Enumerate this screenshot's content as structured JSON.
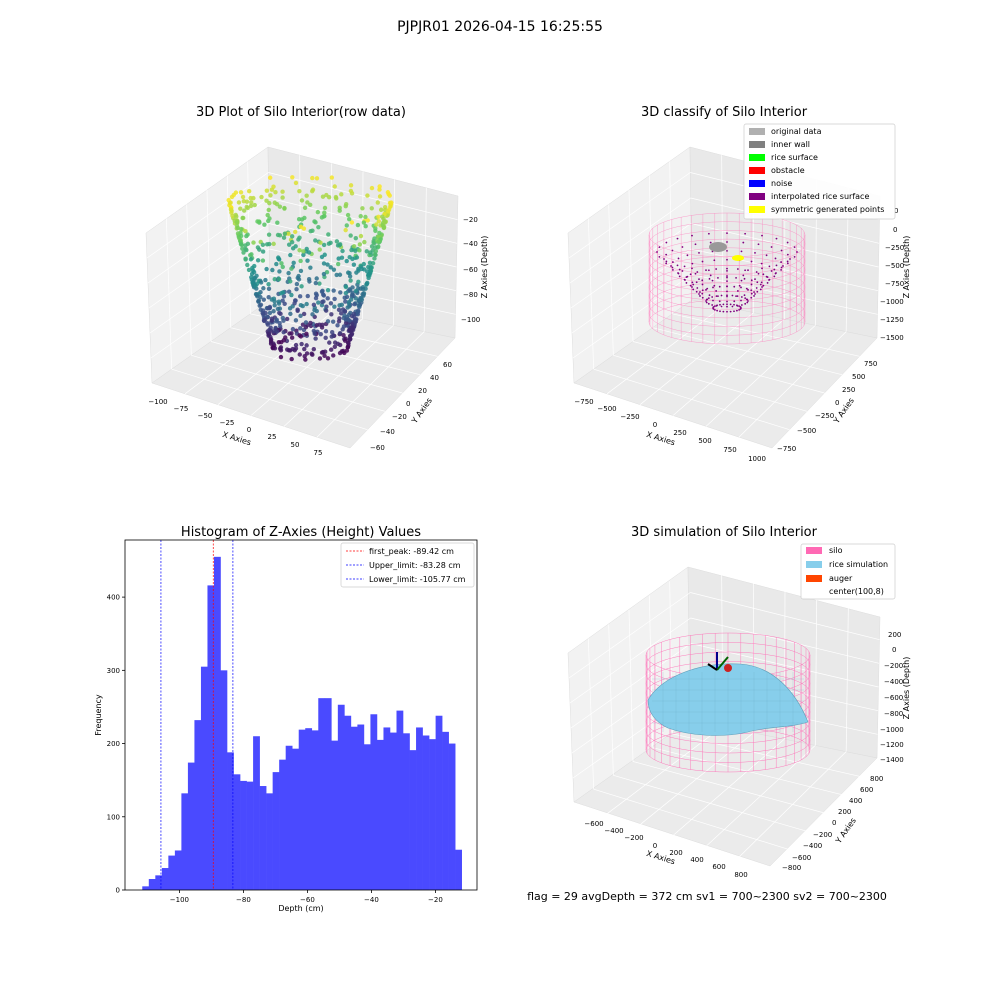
{
  "suptitle": "PJPJR01 2026-04-15 16:25:55",
  "footer": "flag = 29  avgDepth = 372 cm  sv1 = 700~2300  sv2 = 700~2300",
  "panel1": {
    "title": "3D Plot of Silo Interior(row data)",
    "xlabel": "X Axies",
    "ylabel": "Y Axies",
    "zlabel": "Z Axies (Depth)",
    "xticks": [
      "−100",
      "−75",
      "−50",
      "−25",
      "0",
      "25",
      "50",
      "75"
    ],
    "yticks": [
      "−60",
      "−40",
      "−20",
      "0",
      "20",
      "40",
      "60"
    ],
    "zticks": [
      "−20",
      "−40",
      "−60",
      "−80",
      "−100"
    ]
  },
  "panel2": {
    "title": "3D classify of Silo Interior",
    "xlabel": "X Axies",
    "ylabel": "Y Axies",
    "zlabel": "Z Axies (Depth)",
    "xticks": [
      "−750",
      "−500",
      "−250",
      "0",
      "250",
      "500",
      "750",
      "1000"
    ],
    "yticks": [
      "−750",
      "−500",
      "−250",
      "0",
      "250",
      "500",
      "750"
    ],
    "zticks": [
      "0",
      "−250",
      "−500",
      "−750",
      "−1000",
      "−1250",
      "−1500"
    ],
    "ztick_partial": "0",
    "legend": [
      {
        "label": "original data",
        "color": "#b0b0b0"
      },
      {
        "label": "inner wall",
        "color": "#808080"
      },
      {
        "label": "rice surface",
        "color": "#00ff00"
      },
      {
        "label": "obstacle",
        "color": "#ff0000"
      },
      {
        "label": "noise",
        "color": "#0000ff"
      },
      {
        "label": "interpolated rice surface",
        "color": "#800080"
      },
      {
        "label": "symmetric generated points",
        "color": "#ffff00"
      }
    ]
  },
  "panel4": {
    "title": "3D simulation of Silo Interior",
    "xlabel": "X Axies",
    "ylabel": "Y Axies",
    "zlabel": "Z Axies (Depth)",
    "xticks": [
      "−600",
      "−400",
      "−200",
      "0",
      "200",
      "400",
      "600",
      "800"
    ],
    "yticks": [
      "−800",
      "−600",
      "−400",
      "−200",
      "0",
      "200",
      "400",
      "600",
      "800"
    ],
    "zticks": [
      "200",
      "0",
      "−200",
      "−400",
      "−600",
      "−800",
      "−1000",
      "−1200",
      "−1400"
    ],
    "legend": [
      {
        "label": "silo",
        "color": "#ff69b4"
      },
      {
        "label": "rice simulation",
        "color": "#87ceeb"
      },
      {
        "label": "auger",
        "color": "#ff4500"
      },
      {
        "label": "center(100,8)",
        "color": null
      }
    ]
  },
  "chart_data": [
    {
      "type": "histogram",
      "title": "Histogram of Z-Axies (Height) Values",
      "xlabel": "Depth (cm)",
      "ylabel": "Frequency",
      "xlim": [
        -117,
        -7
      ],
      "ylim": [
        0,
        478
      ],
      "xticks": [
        -100,
        -80,
        -60,
        -40,
        -20
      ],
      "yticks": [
        0,
        100,
        200,
        300,
        400
      ],
      "bar_color": "#4a4aff",
      "bin_start": -111.6,
      "bin_width": 2.037,
      "values": [
        5,
        15,
        20,
        30,
        47,
        54,
        132,
        174,
        232,
        305,
        416,
        455,
        300,
        188,
        158,
        149,
        148,
        210,
        142,
        132,
        161,
        178,
        197,
        193,
        219,
        221,
        218,
        262,
        262,
        204,
        253,
        238,
        223,
        226,
        199,
        240,
        205,
        222,
        215,
        245,
        214,
        191,
        222,
        211,
        206,
        238,
        216,
        200,
        55
      ],
      "vlines": [
        {
          "x": -89.42,
          "color": "#ff0000",
          "label": "first_peak: -89.42 cm"
        },
        {
          "x": -83.28,
          "color": "#0000ff",
          "label": "Upper_limit: -83.28 cm"
        },
        {
          "x": -105.77,
          "color": "#0000ff",
          "label": "Lower_limit: -105.77 cm"
        }
      ],
      "legend_position": "top-right"
    }
  ]
}
